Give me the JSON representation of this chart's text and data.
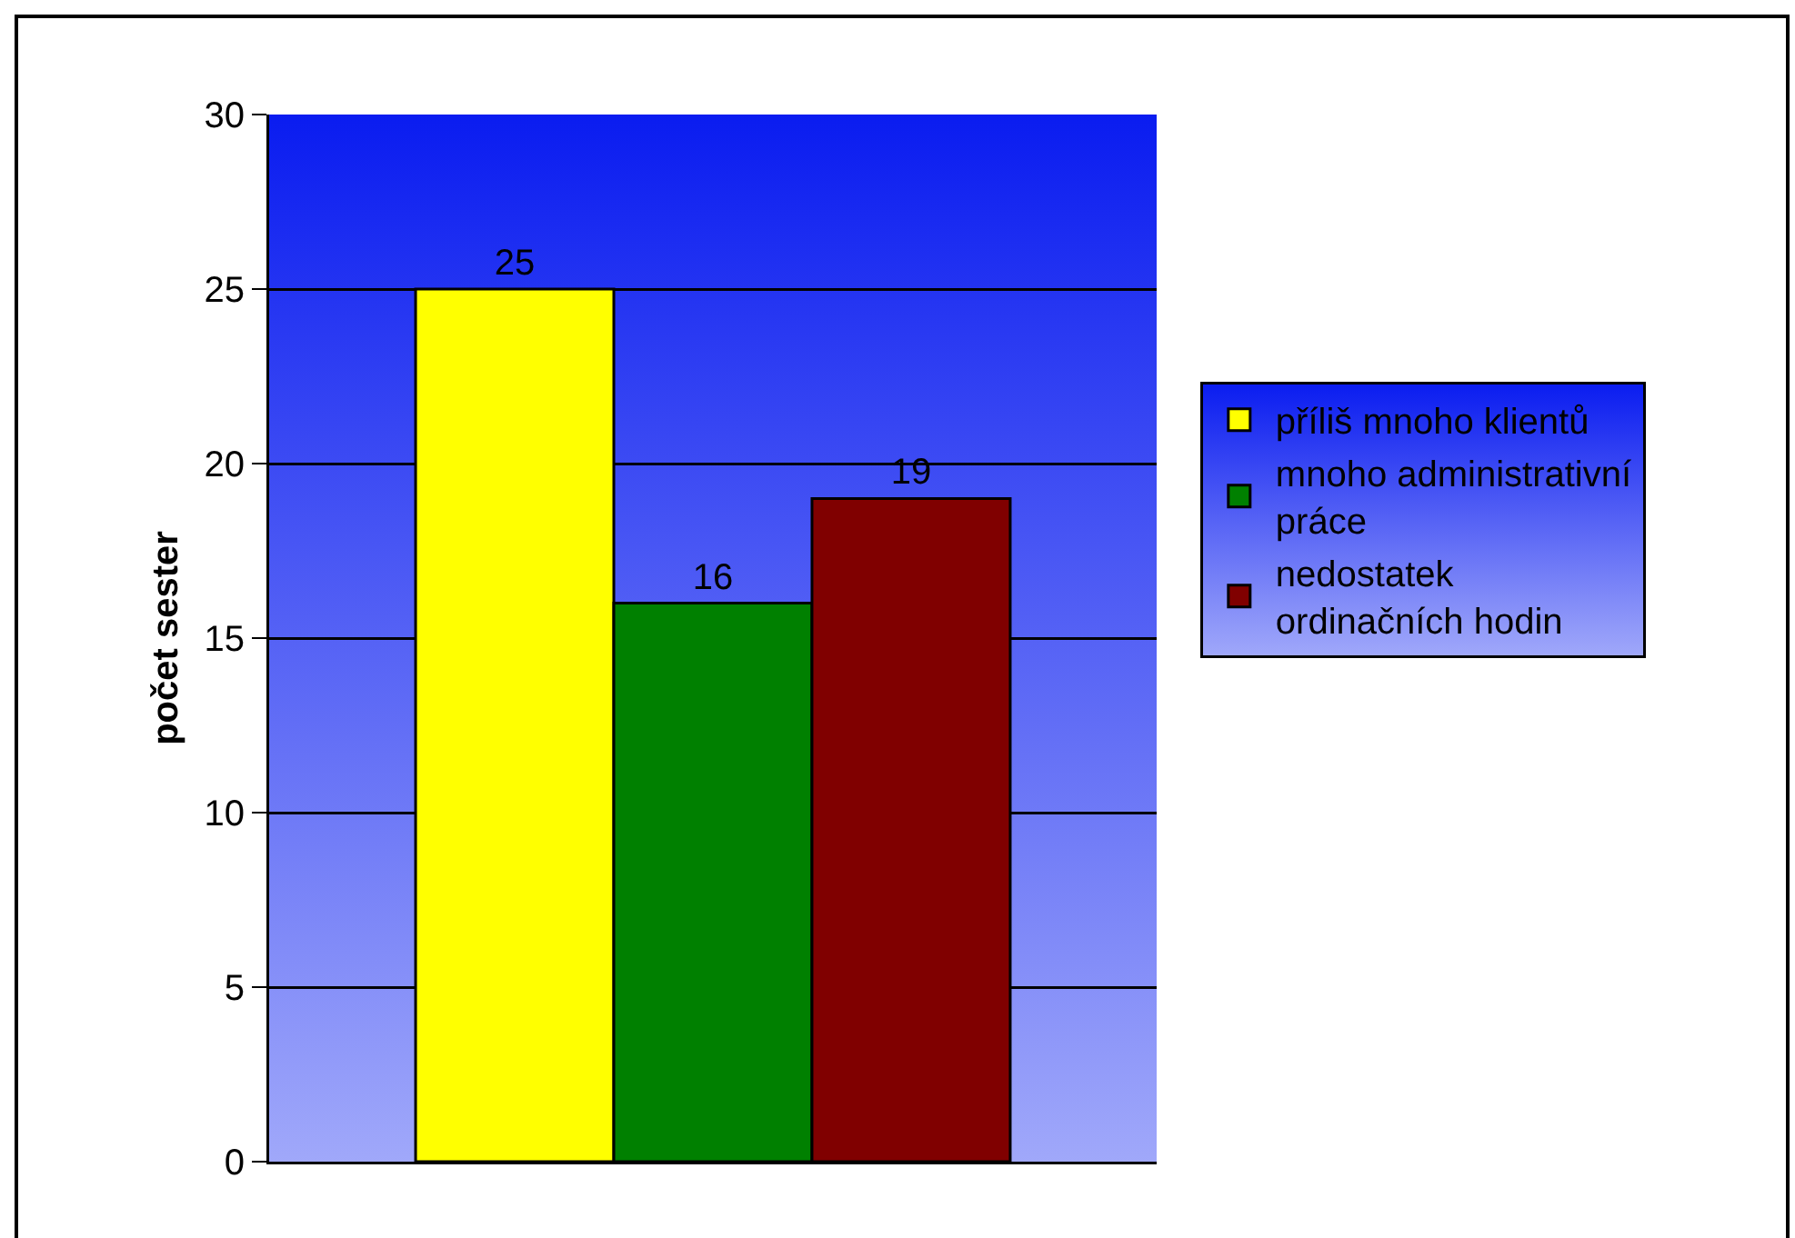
{
  "chart_data": {
    "type": "bar",
    "ylabel": "počet sester",
    "categories": [
      null
    ],
    "series": [
      {
        "name": "příliš mnoho klientů",
        "color": "#ffff00",
        "values": [
          25
        ]
      },
      {
        "name": "mnoho administrativní práce",
        "color": "#008000",
        "values": [
          16
        ]
      },
      {
        "name": "nedostatek ordinačních hodin",
        "color": "#800000",
        "values": [
          19
        ]
      }
    ],
    "ylim": [
      0,
      30
    ],
    "yticks": [
      0,
      5,
      10,
      15,
      20,
      25,
      30
    ],
    "grid": "y",
    "legend": "right",
    "data_labels": true
  }
}
